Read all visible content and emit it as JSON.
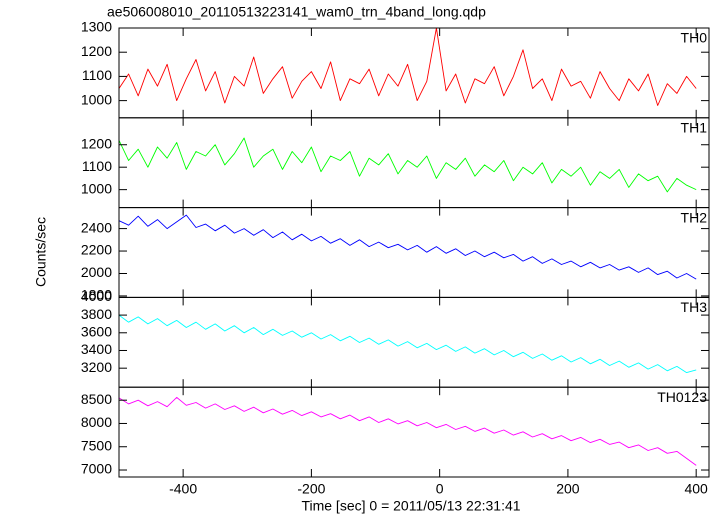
{
  "figure": {
    "title": "ae506008010_20110513223141_wam0_trn_4band_long.qdp",
    "xlabel": "Time [sec] 0 = 2011/05/13 22:31:41",
    "ylabel": "Counts/sec"
  },
  "chart_data": [
    {
      "type": "line",
      "label": "TH0",
      "color": "#ff0000",
      "x": [
        -500,
        -485,
        -470,
        -455,
        -440,
        -425,
        -410,
        -395,
        -380,
        -365,
        -350,
        -335,
        -320,
        -305,
        -290,
        -275,
        -260,
        -245,
        -230,
        -215,
        -200,
        -185,
        -170,
        -155,
        -140,
        -125,
        -110,
        -95,
        -80,
        -65,
        -50,
        -35,
        -20,
        -5,
        10,
        25,
        40,
        55,
        70,
        85,
        100,
        115,
        130,
        145,
        160,
        175,
        190,
        205,
        220,
        235,
        250,
        265,
        280,
        295,
        310,
        325,
        340,
        355,
        370,
        385,
        400
      ],
      "values": [
        1050,
        1110,
        1020,
        1130,
        1060,
        1150,
        1000,
        1090,
        1170,
        1040,
        1120,
        990,
        1100,
        1060,
        1180,
        1030,
        1090,
        1140,
        1010,
        1080,
        1120,
        1050,
        1160,
        1000,
        1090,
        1070,
        1130,
        1020,
        1110,
        1060,
        1150,
        1000,
        1080,
        1300,
        1040,
        1110,
        990,
        1090,
        1070,
        1140,
        1020,
        1100,
        1210,
        1050,
        1090,
        1000,
        1130,
        1060,
        1080,
        1010,
        1120,
        1050,
        1000,
        1090,
        1040,
        1110,
        980,
        1070,
        1030,
        1100,
        1050
      ],
      "xlim": [
        -500,
        420
      ],
      "ylim": [
        929,
        1300
      ],
      "yticks": [
        1000,
        1100,
        1200,
        1300
      ],
      "xticks": [
        -400,
        -200,
        0,
        200,
        400
      ]
    },
    {
      "type": "line",
      "label": "TH1",
      "color": "#00ff00",
      "x": [
        -500,
        -485,
        -470,
        -455,
        -440,
        -425,
        -410,
        -395,
        -380,
        -365,
        -350,
        -335,
        -320,
        -305,
        -290,
        -275,
        -260,
        -245,
        -230,
        -215,
        -200,
        -185,
        -170,
        -155,
        -140,
        -125,
        -110,
        -95,
        -80,
        -65,
        -50,
        -35,
        -20,
        -5,
        10,
        25,
        40,
        55,
        70,
        85,
        100,
        115,
        130,
        145,
        160,
        175,
        190,
        205,
        220,
        235,
        250,
        265,
        280,
        295,
        310,
        325,
        340,
        355,
        370,
        385,
        400
      ],
      "values": [
        1220,
        1130,
        1180,
        1100,
        1190,
        1140,
        1210,
        1090,
        1170,
        1150,
        1200,
        1110,
        1160,
        1230,
        1100,
        1150,
        1180,
        1090,
        1170,
        1120,
        1190,
        1080,
        1150,
        1130,
        1170,
        1060,
        1140,
        1110,
        1160,
        1070,
        1130,
        1100,
        1150,
        1050,
        1120,
        1090,
        1140,
        1060,
        1110,
        1080,
        1130,
        1040,
        1100,
        1070,
        1120,
        1030,
        1090,
        1060,
        1100,
        1020,
        1080,
        1050,
        1090,
        1010,
        1070,
        1040,
        1060,
        990,
        1050,
        1020,
        1000
      ],
      "xlim": [
        -500,
        420
      ],
      "ylim": [
        920,
        1320
      ],
      "yticks": [
        1000,
        1100,
        1200
      ],
      "xticks": [
        -400,
        -200,
        0,
        200,
        400
      ]
    },
    {
      "type": "line",
      "label": "TH2",
      "color": "#0000ff",
      "x": [
        -500,
        -485,
        -470,
        -455,
        -440,
        -425,
        -410,
        -395,
        -380,
        -365,
        -350,
        -335,
        -320,
        -305,
        -290,
        -275,
        -260,
        -245,
        -230,
        -215,
        -200,
        -185,
        -170,
        -155,
        -140,
        -125,
        -110,
        -95,
        -80,
        -65,
        -50,
        -35,
        -20,
        -5,
        10,
        25,
        40,
        55,
        70,
        85,
        100,
        115,
        130,
        145,
        160,
        175,
        190,
        205,
        220,
        235,
        250,
        265,
        280,
        295,
        310,
        325,
        340,
        355,
        370,
        385,
        400
      ],
      "values": [
        2470,
        2430,
        2510,
        2420,
        2480,
        2400,
        2460,
        2520,
        2410,
        2440,
        2380,
        2430,
        2360,
        2400,
        2340,
        2390,
        2320,
        2370,
        2300,
        2350,
        2290,
        2330,
        2270,
        2310,
        2250,
        2300,
        2240,
        2280,
        2230,
        2260,
        2210,
        2250,
        2190,
        2240,
        2180,
        2220,
        2160,
        2200,
        2150,
        2190,
        2140,
        2170,
        2110,
        2150,
        2090,
        2130,
        2080,
        2110,
        2060,
        2100,
        2050,
        2080,
        2030,
        2060,
        2010,
        2050,
        1990,
        2020,
        1960,
        2000,
        1950
      ],
      "xlim": [
        -500,
        420
      ],
      "ylim": [
        1787,
        2587
      ],
      "yticks": [
        1800,
        2000,
        2200,
        2400
      ],
      "xticks": [
        -400,
        -200,
        0,
        200,
        400
      ]
    },
    {
      "type": "line",
      "label": "TH3",
      "color": "#00ffff",
      "x": [
        -500,
        -485,
        -470,
        -455,
        -440,
        -425,
        -410,
        -395,
        -380,
        -365,
        -350,
        -335,
        -320,
        -305,
        -290,
        -275,
        -260,
        -245,
        -230,
        -215,
        -200,
        -185,
        -170,
        -155,
        -140,
        -125,
        -110,
        -95,
        -80,
        -65,
        -50,
        -35,
        -20,
        -5,
        10,
        25,
        40,
        55,
        70,
        85,
        100,
        115,
        130,
        145,
        160,
        175,
        190,
        205,
        220,
        235,
        250,
        265,
        280,
        295,
        310,
        325,
        340,
        355,
        370,
        385,
        400
      ],
      "values": [
        3800,
        3720,
        3780,
        3700,
        3760,
        3680,
        3740,
        3660,
        3720,
        3640,
        3700,
        3620,
        3680,
        3600,
        3660,
        3580,
        3640,
        3570,
        3620,
        3550,
        3600,
        3530,
        3580,
        3510,
        3560,
        3490,
        3540,
        3470,
        3520,
        3450,
        3500,
        3430,
        3480,
        3410,
        3460,
        3390,
        3440,
        3370,
        3420,
        3350,
        3400,
        3330,
        3380,
        3310,
        3360,
        3290,
        3340,
        3270,
        3320,
        3250,
        3300,
        3230,
        3280,
        3210,
        3260,
        3190,
        3240,
        3170,
        3220,
        3150,
        3180
      ],
      "xlim": [
        -500,
        420
      ],
      "ylim": [
        2985,
        4000
      ],
      "yticks": [
        3200,
        3400,
        3600,
        3800,
        4000
      ],
      "xticks": [
        -400,
        -200,
        0,
        200,
        400
      ]
    },
    {
      "type": "line",
      "label": "TH0123",
      "color": "#ff00ff",
      "x": [
        -500,
        -485,
        -470,
        -455,
        -440,
        -425,
        -410,
        -395,
        -380,
        -365,
        -350,
        -335,
        -320,
        -305,
        -290,
        -275,
        -260,
        -245,
        -230,
        -215,
        -200,
        -185,
        -170,
        -155,
        -140,
        -125,
        -110,
        -95,
        -80,
        -65,
        -50,
        -35,
        -20,
        -5,
        10,
        25,
        40,
        55,
        70,
        85,
        100,
        115,
        130,
        145,
        160,
        175,
        190,
        205,
        220,
        235,
        250,
        265,
        280,
        295,
        310,
        325,
        340,
        355,
        370,
        385,
        400
      ],
      "values": [
        8550,
        8420,
        8500,
        8380,
        8470,
        8360,
        8560,
        8390,
        8450,
        8330,
        8420,
        8300,
        8380,
        8260,
        8350,
        8230,
        8310,
        8200,
        8280,
        8170,
        8250,
        8140,
        8210,
        8100,
        8180,
        8060,
        8140,
        8020,
        8100,
        7990,
        8060,
        7950,
        8020,
        7910,
        7980,
        7870,
        7940,
        7830,
        7900,
        7790,
        7860,
        7750,
        7820,
        7710,
        7780,
        7670,
        7740,
        7630,
        7700,
        7590,
        7660,
        7550,
        7600,
        7480,
        7540,
        7420,
        7480,
        7360,
        7400,
        7250,
        7100
      ],
      "xlim": [
        -500,
        420
      ],
      "ylim": [
        6850,
        8779
      ],
      "yticks": [
        7000,
        7500,
        8000,
        8500
      ],
      "xticks": [
        -400,
        -200,
        0,
        200,
        400
      ]
    }
  ]
}
